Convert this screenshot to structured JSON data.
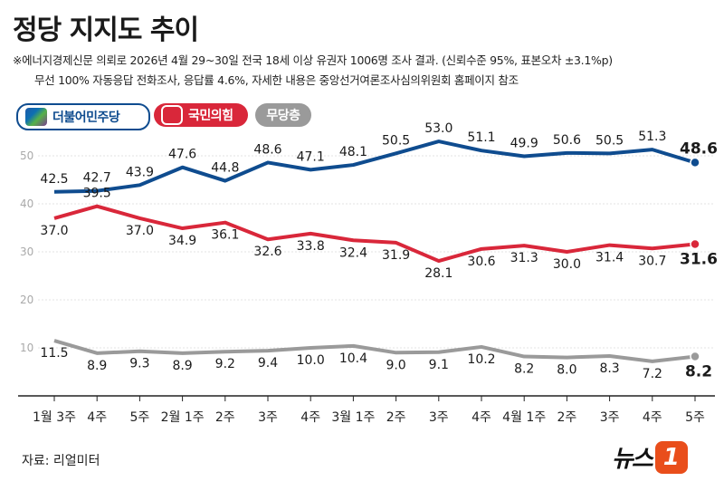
{
  "header": {
    "title": "정당 지지도 추이",
    "note_line1": "※에너지경제신문 의뢰로 2026년 4월 29~30일 전국 18세 이상 유권자 1006명 조사 결과. (신뢰수준 95%, 표본오차 ±3.1%p)",
    "note_line2": "무선 100% 자동응답 전화조사, 응답률 4.6%, 자세한 내용은 중앙선거여론조사심의위원회 홈페이지 참조"
  },
  "footer": {
    "source": "자료: 리얼미터",
    "logo_text": "뉴스",
    "logo_mark": "1"
  },
  "colors": {
    "dem": "#0f4c8f",
    "ppp": "#d9273a",
    "none": "#9a9a9a",
    "axis": "#bbbbbb"
  },
  "chart_data": {
    "type": "line",
    "x": [
      "1월 3주",
      "4주",
      "5주",
      "2월 1주",
      "2주",
      "3주",
      "4주",
      "3월 1주",
      "2주",
      "3주",
      "4주",
      "4월 1주",
      "2주",
      "3주",
      "4주",
      "5주"
    ],
    "series": [
      {
        "name": "더불어민주당",
        "values": [
          42.5,
          42.7,
          43.9,
          47.6,
          44.8,
          48.6,
          47.1,
          48.1,
          50.5,
          53.0,
          51.1,
          49.9,
          50.6,
          50.5,
          51.3,
          48.6
        ]
      },
      {
        "name": "국민의힘",
        "values": [
          37.0,
          39.5,
          37.0,
          34.9,
          36.1,
          32.6,
          33.8,
          32.4,
          31.9,
          28.1,
          30.6,
          31.3,
          30.0,
          31.4,
          30.7,
          31.6
        ]
      },
      {
        "name": "무당층",
        "values": [
          11.5,
          8.9,
          9.3,
          8.9,
          9.2,
          9.4,
          10.0,
          10.4,
          9.0,
          9.1,
          10.2,
          8.2,
          8.0,
          8.3,
          7.2,
          8.2
        ]
      }
    ],
    "ylim": [
      0,
      55
    ],
    "yticks": [
      10,
      20,
      30,
      40,
      50
    ],
    "grid": true,
    "legend": "top-left"
  }
}
